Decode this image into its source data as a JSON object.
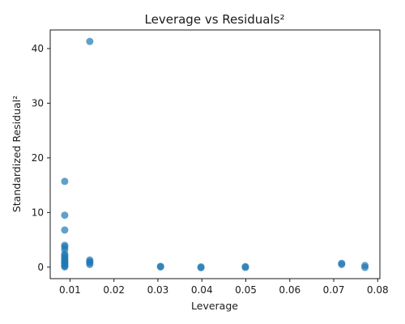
{
  "chart_data": {
    "type": "scatter",
    "title": "Leverage vs Residuals²",
    "xlabel": "Leverage",
    "ylabel": "Standardized Residual²",
    "xlim": [
      0.0055,
      0.0805
    ],
    "ylim": [
      -2.1,
      43.4
    ],
    "xticks": [
      0.01,
      0.02,
      0.03,
      0.04,
      0.05,
      0.06,
      0.07,
      0.08
    ],
    "xtick_labels": [
      "0.01",
      "0.02",
      "0.03",
      "0.04",
      "0.05",
      "0.06",
      "0.07",
      "0.08"
    ],
    "yticks": [
      0,
      10,
      20,
      30,
      40
    ],
    "ytick_labels": [
      "0",
      "10",
      "20",
      "30",
      "40"
    ],
    "grid": false,
    "marker_color": "#1f77b4",
    "marker_alpha": 0.7,
    "points": [
      {
        "x": 0.0145,
        "y": 41.3
      },
      {
        "x": 0.0088,
        "y": 15.7
      },
      {
        "x": 0.0088,
        "y": 9.5
      },
      {
        "x": 0.0088,
        "y": 6.8
      },
      {
        "x": 0.0088,
        "y": 4.0
      },
      {
        "x": 0.0088,
        "y": 3.7
      },
      {
        "x": 0.0088,
        "y": 3.2
      },
      {
        "x": 0.0088,
        "y": 2.4
      },
      {
        "x": 0.0088,
        "y": 2.1
      },
      {
        "x": 0.0088,
        "y": 1.8
      },
      {
        "x": 0.0088,
        "y": 1.5
      },
      {
        "x": 0.0088,
        "y": 1.2
      },
      {
        "x": 0.0088,
        "y": 1.0
      },
      {
        "x": 0.0088,
        "y": 0.8
      },
      {
        "x": 0.0088,
        "y": 0.6
      },
      {
        "x": 0.0088,
        "y": 0.4
      },
      {
        "x": 0.0088,
        "y": 0.2
      },
      {
        "x": 0.0088,
        "y": 0.05
      },
      {
        "x": 0.0145,
        "y": 1.3
      },
      {
        "x": 0.0145,
        "y": 1.0
      },
      {
        "x": 0.0145,
        "y": 0.8
      },
      {
        "x": 0.0145,
        "y": 0.5
      },
      {
        "x": 0.0306,
        "y": 0.15
      },
      {
        "x": 0.0306,
        "y": 0.05
      },
      {
        "x": 0.0398,
        "y": 0.05
      },
      {
        "x": 0.0398,
        "y": -0.1
      },
      {
        "x": 0.0499,
        "y": 0.1
      },
      {
        "x": 0.0499,
        "y": -0.05
      },
      {
        "x": 0.0718,
        "y": 0.7
      },
      {
        "x": 0.0718,
        "y": 0.5
      },
      {
        "x": 0.0771,
        "y": 0.3
      },
      {
        "x": 0.0771,
        "y": -0.05
      }
    ]
  }
}
